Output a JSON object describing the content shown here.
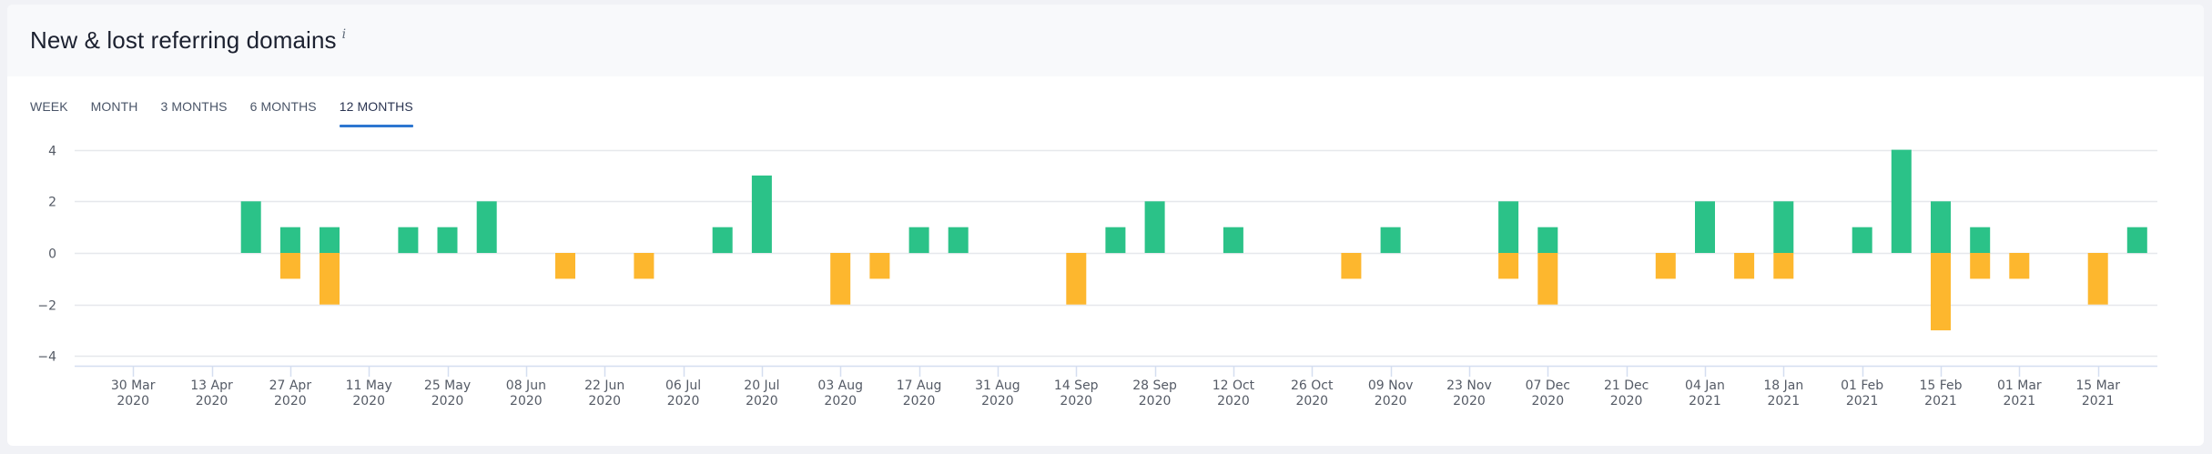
{
  "panel": {
    "title": "New & lost referring domains",
    "info_icon": "i"
  },
  "tabs": [
    {
      "label": "WEEK",
      "active": false
    },
    {
      "label": "MONTH",
      "active": false
    },
    {
      "label": "3 MONTHS",
      "active": false
    },
    {
      "label": "6 MONTHS",
      "active": false
    },
    {
      "label": "12 MONTHS",
      "active": true
    }
  ],
  "colors": {
    "new": "#2bc288",
    "lost": "#fdb72e",
    "grid": "#e6e8ec",
    "axis": "#d5def0",
    "tick_label": "#555b66",
    "tab_underline": "#2d76d0"
  },
  "chart_data": {
    "type": "bar",
    "stacked": true,
    "title": "New & lost referring domains",
    "xlabel": "",
    "ylabel": "",
    "ylim": [
      -4,
      4
    ],
    "yticks": [
      4,
      2,
      0,
      -2,
      -4
    ],
    "grid": true,
    "legend": "none",
    "x_tick_labels": [
      [
        "30 Mar",
        "2020"
      ],
      [
        "13 Apr",
        "2020"
      ],
      [
        "27 Apr",
        "2020"
      ],
      [
        "11 May",
        "2020"
      ],
      [
        "25 May",
        "2020"
      ],
      [
        "08 Jun",
        "2020"
      ],
      [
        "22 Jun",
        "2020"
      ],
      [
        "06 Jul",
        "2020"
      ],
      [
        "20 Jul",
        "2020"
      ],
      [
        "03 Aug",
        "2020"
      ],
      [
        "17 Aug",
        "2020"
      ],
      [
        "31 Aug",
        "2020"
      ],
      [
        "14 Sep",
        "2020"
      ],
      [
        "28 Sep",
        "2020"
      ],
      [
        "12 Oct",
        "2020"
      ],
      [
        "26 Oct",
        "2020"
      ],
      [
        "09 Nov",
        "2020"
      ],
      [
        "23 Nov",
        "2020"
      ],
      [
        "07 Dec",
        "2020"
      ],
      [
        "21 Dec",
        "2020"
      ],
      [
        "04 Jan",
        "2021"
      ],
      [
        "18 Jan",
        "2021"
      ],
      [
        "01 Feb",
        "2021"
      ],
      [
        "15 Feb",
        "2021"
      ],
      [
        "01 Mar",
        "2021"
      ],
      [
        "15 Mar",
        "2021"
      ]
    ],
    "categories": [
      "23 Mar 2020",
      "30 Mar 2020",
      "06 Apr 2020",
      "13 Apr 2020",
      "20 Apr 2020",
      "27 Apr 2020",
      "04 May 2020",
      "11 May 2020",
      "18 May 2020",
      "25 May 2020",
      "01 Jun 2020",
      "08 Jun 2020",
      "15 Jun 2020",
      "22 Jun 2020",
      "29 Jun 2020",
      "06 Jul 2020",
      "13 Jul 2020",
      "20 Jul 2020",
      "27 Jul 2020",
      "03 Aug 2020",
      "10 Aug 2020",
      "17 Aug 2020",
      "24 Aug 2020",
      "31 Aug 2020",
      "07 Sep 2020",
      "14 Sep 2020",
      "21 Sep 2020",
      "28 Sep 2020",
      "05 Oct 2020",
      "12 Oct 2020",
      "19 Oct 2020",
      "26 Oct 2020",
      "02 Nov 2020",
      "09 Nov 2020",
      "16 Nov 2020",
      "23 Nov 2020",
      "30 Nov 2020",
      "07 Dec 2020",
      "14 Dec 2020",
      "21 Dec 2020",
      "28 Dec 2020",
      "04 Jan 2021",
      "11 Jan 2021",
      "18 Jan 2021",
      "25 Jan 2021",
      "01 Feb 2021",
      "08 Feb 2021",
      "15 Feb 2021",
      "22 Feb 2021",
      "01 Mar 2021",
      "08 Mar 2021",
      "15 Mar 2021",
      "22 Mar 2021"
    ],
    "series": [
      {
        "name": "New",
        "color": "#2bc288",
        "values": [
          0,
          0,
          0,
          0,
          2,
          1,
          1,
          0,
          1,
          1,
          2,
          0,
          0,
          0,
          0,
          0,
          1,
          3,
          0,
          0,
          0,
          1,
          1,
          0,
          0,
          0,
          1,
          2,
          0,
          1,
          0,
          0,
          0,
          1,
          0,
          0,
          2,
          1,
          0,
          0,
          0,
          2,
          0,
          2,
          0,
          1,
          4,
          2,
          1,
          0,
          0,
          0,
          1
        ]
      },
      {
        "name": "Lost",
        "color": "#fdb72e",
        "values": [
          0,
          0,
          0,
          0,
          0,
          -1,
          -2,
          0,
          0,
          0,
          0,
          0,
          -1,
          0,
          -1,
          0,
          0,
          0,
          0,
          -2,
          -1,
          0,
          0,
          0,
          0,
          -2,
          0,
          0,
          0,
          0,
          0,
          0,
          -1,
          0,
          0,
          0,
          -1,
          -2,
          0,
          0,
          -1,
          0,
          -1,
          -1,
          0,
          0,
          0,
          -3,
          -1,
          -1,
          0,
          -2,
          0
        ]
      }
    ]
  }
}
